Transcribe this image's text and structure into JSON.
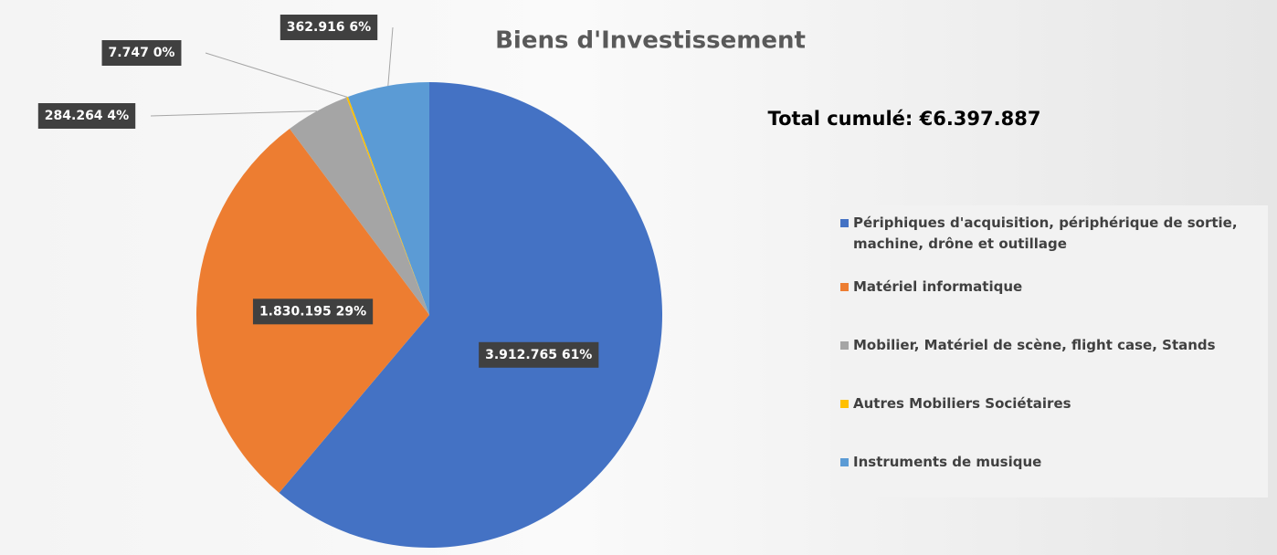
{
  "chart_data": {
    "type": "pie",
    "title": "Biens d'Investissement",
    "annotation": "Total  cumulé:  €6.397.887",
    "categories": [
      "Périphiques d'acquisition, périphérique de sortie, machine, drône et outillage",
      "Matériel informatique",
      "Mobilier, Matériel de scène, flight case, Stands",
      "Autres Mobiliers Sociétaires",
      "Instruments de musique"
    ],
    "values": [
      3912765,
      1830195,
      284264,
      7747,
      362916
    ],
    "value_labels": [
      "3.912.765  61%",
      "1.830.195  29%",
      "284.264  4%",
      "7.747  0%",
      "362.916  6%"
    ],
    "colors": [
      "#4472c4",
      "#ed7d31",
      "#a5a5a5",
      "#ffc000",
      "#5b9bd5"
    ],
    "legend": "right"
  }
}
